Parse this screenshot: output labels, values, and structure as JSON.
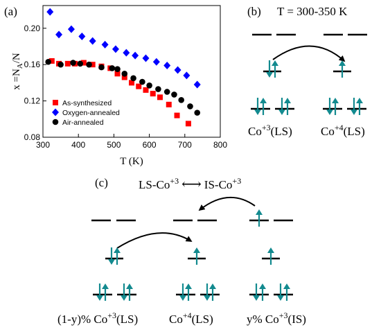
{
  "panels": {
    "a": {
      "label": "(a)",
      "chart_data": {
        "type": "scatter",
        "title": "",
        "xlabel": "T (K)",
        "ylabel_main": "x =N",
        "ylabel_sub": "A",
        "ylabel_tail": "/N",
        "xlim": [
          300,
          800
        ],
        "ylim": [
          0.08,
          0.225
        ],
        "xticks": [
          300,
          400,
          500,
          600,
          700,
          800
        ],
        "yticks": [
          0.08,
          0.12,
          0.16,
          0.2
        ],
        "ytick_labels": [
          "0.08",
          "0.12",
          "0.16",
          "0.20"
        ],
        "grid": false,
        "legend_position": "bottom-left",
        "series": [
          {
            "name": "As-synthesized",
            "marker": "square",
            "color": "#ff0000",
            "x": [
              325,
              345,
              370,
              390,
              415,
              440,
              465,
              490,
              510,
              530,
              550,
              570,
              590,
              610,
              630,
              655,
              678,
              710
            ],
            "y": [
              0.164,
              0.161,
              0.161,
              0.161,
              0.162,
              0.16,
              0.158,
              0.156,
              0.15,
              0.146,
              0.14,
              0.136,
              0.132,
              0.128,
              0.124,
              0.116,
              0.104,
              0.095
            ]
          },
          {
            "name": "Oxygen-annealed",
            "marker": "diamond",
            "color": "#0000ff",
            "x": [
              320,
              345,
              380,
              410,
              440,
              475,
              505,
              535,
              560,
              590,
              620,
              650,
              680,
              705,
              735
            ],
            "y": [
              0.218,
              0.193,
              0.199,
              0.191,
              0.186,
              0.182,
              0.177,
              0.173,
              0.17,
              0.167,
              0.163,
              0.159,
              0.154,
              0.148,
              0.138
            ]
          },
          {
            "name": "Air-annealed",
            "marker": "circle",
            "color": "#000000",
            "x": [
              315,
              350,
              385,
              405,
              430,
              465,
              495,
              510,
              530,
              555,
              580,
              600,
              625,
              650,
              670,
              690,
              715,
              735
            ],
            "y": [
              0.163,
              0.16,
              0.162,
              0.161,
              0.16,
              0.157,
              0.156,
              0.155,
              0.15,
              0.145,
              0.141,
              0.137,
              0.133,
              0.13,
              0.127,
              0.121,
              0.114,
              0.107
            ]
          }
        ]
      }
    },
    "b": {
      "label": "(b)",
      "title": "T = 300-350 K",
      "caption_left": "Co",
      "caption_left_sup": "+3",
      "caption_left_tail": "(LS)",
      "caption_right": "Co",
      "caption_right_sup": "+4",
      "caption_right_tail": "(LS)"
    },
    "c": {
      "label": "(c)",
      "equation_left": "LS-Co",
      "equation_left_sup": "+3",
      "equation_arrow": "⟷",
      "equation_right": "IS-Co",
      "equation_right_sup": "+3",
      "caption_1": "(1-y)% Co",
      "caption_1_sup": "+3",
      "caption_1_tail": "(LS)",
      "caption_2": "Co",
      "caption_2_sup": "+4",
      "caption_2_tail": "(LS)",
      "caption_3": "y% Co",
      "caption_3_sup": "+3",
      "caption_3_tail": "(IS)"
    }
  },
  "colors": {
    "spin_arrow": "#138a8f",
    "level_line": "#000000",
    "transfer_arrow": "#000000"
  }
}
